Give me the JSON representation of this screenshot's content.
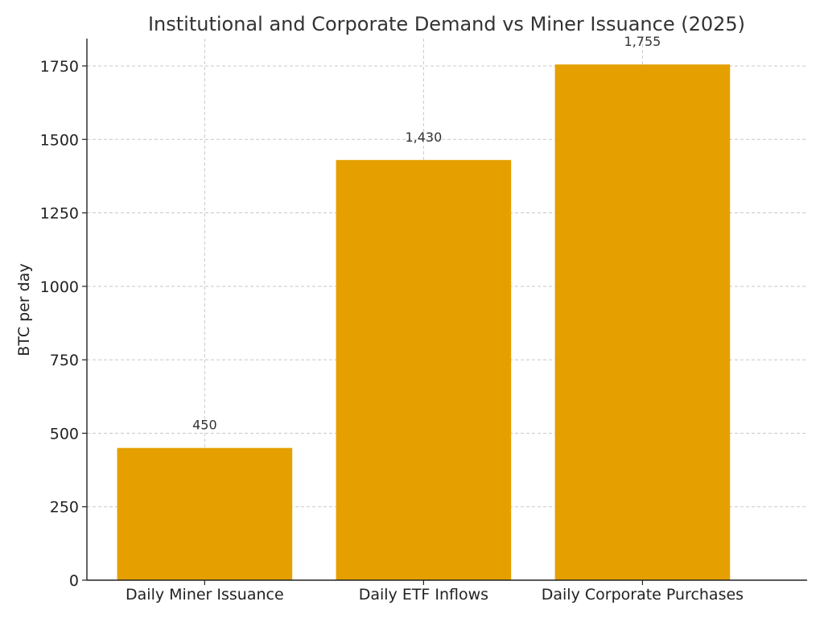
{
  "chart_data": {
    "type": "bar",
    "title": "Institutional and Corporate Demand vs Miner Issuance (2025)",
    "xlabel": "",
    "ylabel": "BTC per day",
    "categories": [
      "Daily Miner Issuance",
      "Daily ETF Inflows",
      "Daily Corporate Purchases"
    ],
    "values": [
      450,
      1430,
      1755
    ],
    "data_labels": [
      "450",
      "1,430",
      "1,755"
    ],
    "ylim": [
      0,
      1843
    ],
    "yticks": [
      0,
      250,
      500,
      750,
      1000,
      1250,
      1500,
      1750
    ],
    "ytick_labels": [
      "0",
      "250",
      "500",
      "750",
      "1000",
      "1250",
      "1500",
      "1750"
    ],
    "grid": true,
    "bar_color": "#E5A000",
    "legend": "none"
  }
}
